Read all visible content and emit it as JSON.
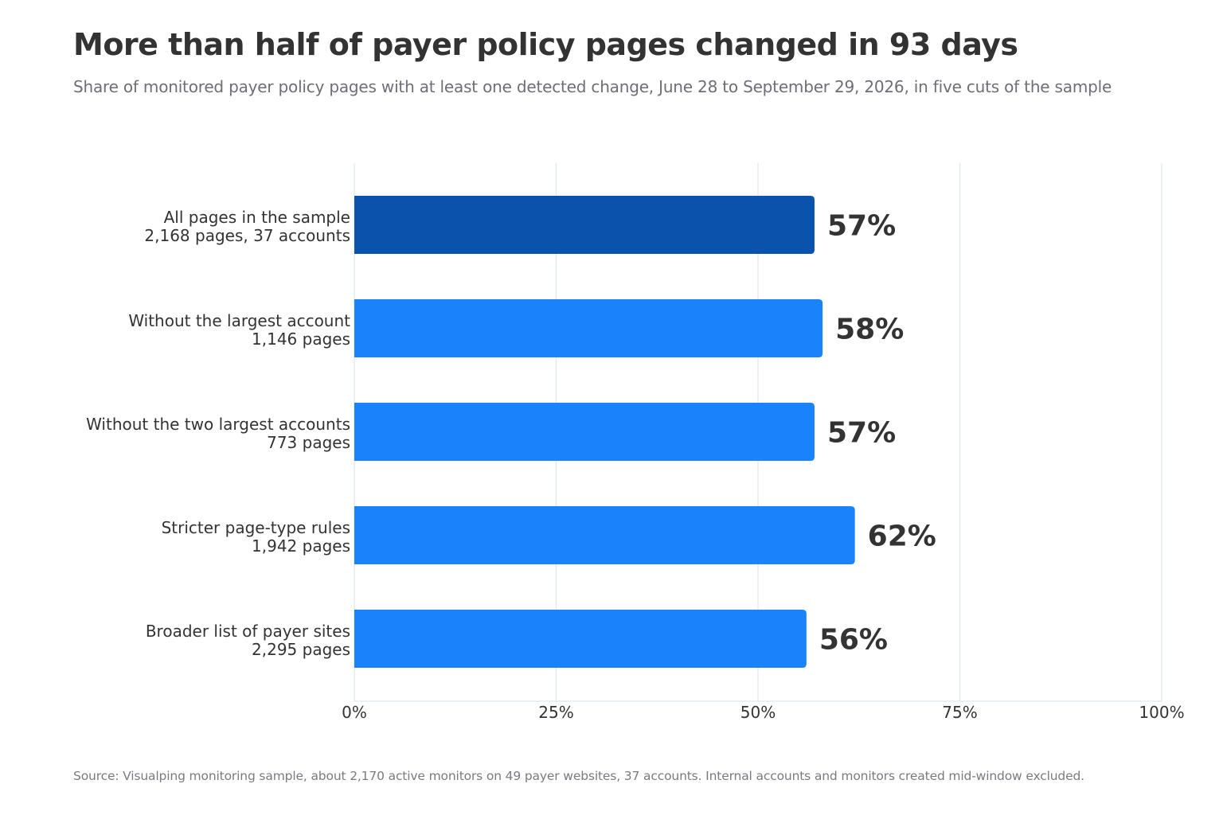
{
  "title": "More than half of payer policy pages changed in 93 days",
  "subtitle": "Share of monitored payer policy pages with at least one detected change, June 28 to September 29, 2026, in five cuts of the sample",
  "source": "Source: Visualping monitoring sample, about 2,170 active monitors on 49 payer websites, 37 accounts. Internal accounts and monitors created mid-window excluded.",
  "colors": {
    "highlight": "#0b52ad",
    "bar": "#1a82fb",
    "grid": "#e6eaef",
    "text": "#333333"
  },
  "chart_data": {
    "type": "bar",
    "orientation": "horizontal",
    "categories": [
      [
        "All pages in the sample",
        "2,168 pages, 37 accounts"
      ],
      [
        "Without the largest account",
        "1,146 pages"
      ],
      [
        "Without the two largest accounts",
        "773 pages"
      ],
      [
        "Stricter page-type rules",
        "1,942 pages"
      ],
      [
        "Broader list of payer sites",
        "2,295 pages"
      ]
    ],
    "values": [
      57,
      58,
      57,
      62,
      56
    ],
    "value_labels": [
      "57%",
      "58%",
      "57%",
      "62%",
      "56%"
    ],
    "highlight_index": 0,
    "xlim": [
      0,
      100
    ],
    "xticks": [
      0,
      25,
      50,
      75,
      100
    ],
    "xtick_labels": [
      "0%",
      "25%",
      "50%",
      "75%",
      "100%"
    ],
    "grid": true,
    "legend": false
  }
}
